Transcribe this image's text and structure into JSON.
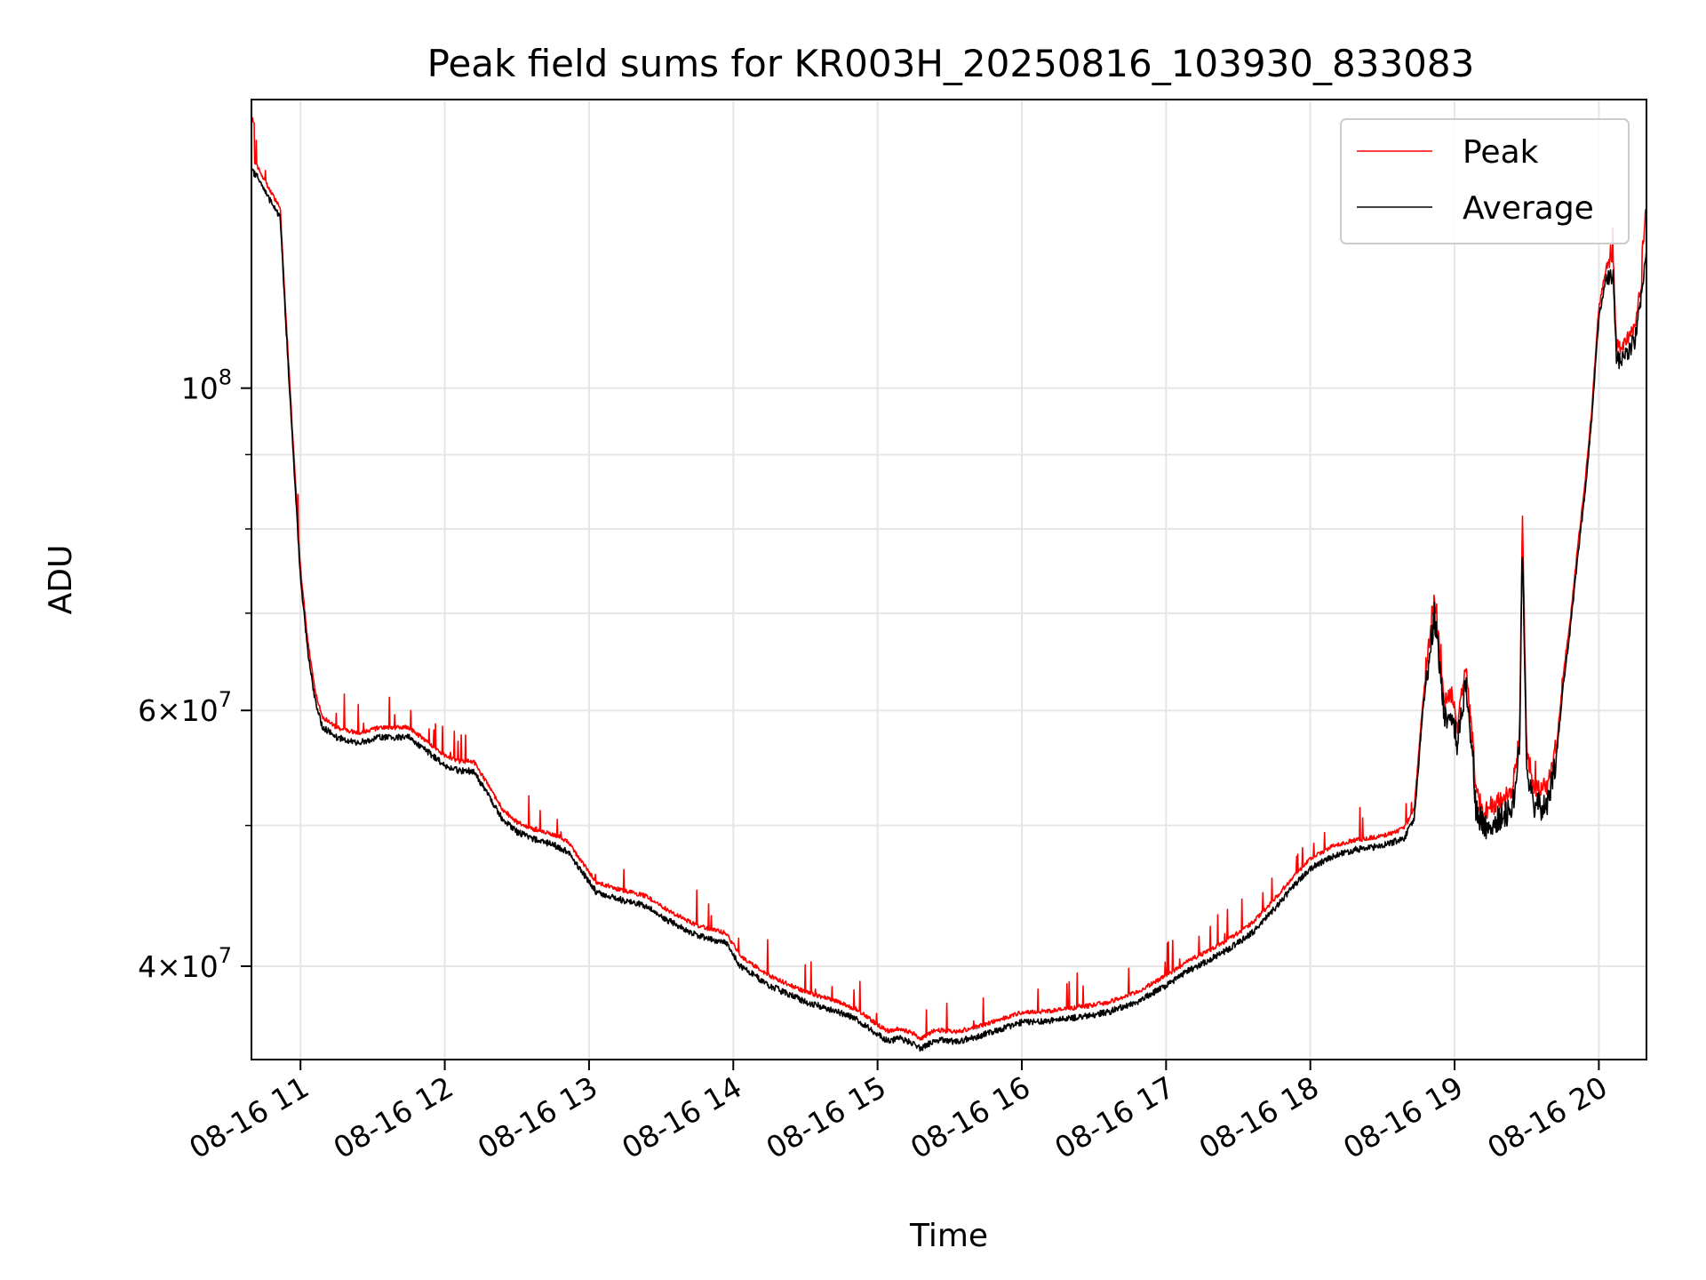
{
  "chart_data": {
    "type": "line",
    "title": "Peak field sums for KR003H_20250816_103930_833083",
    "xlabel": "Time",
    "ylabel": "ADU",
    "yscale": "log",
    "xlim_hours": [
      10.66,
      20.33
    ],
    "ylim": [
      34500000,
      158000000
    ],
    "x_ticks": [
      {
        "h": 11,
        "label": "08-16 11"
      },
      {
        "h": 12,
        "label": "08-16 12"
      },
      {
        "h": 13,
        "label": "08-16 13"
      },
      {
        "h": 14,
        "label": "08-16 14"
      },
      {
        "h": 15,
        "label": "08-16 15"
      },
      {
        "h": 16,
        "label": "08-16 16"
      },
      {
        "h": 17,
        "label": "08-16 17"
      },
      {
        "h": 18,
        "label": "08-16 18"
      },
      {
        "h": 19,
        "label": "08-16 19"
      },
      {
        "h": 20,
        "label": "08-16 20"
      }
    ],
    "y_major_ticks": [
      {
        "v": 40000000,
        "mantissa": "4",
        "exp": "7"
      },
      {
        "v": 60000000,
        "mantissa": "6",
        "exp": "7"
      },
      {
        "v": 100000000,
        "mantissa": "",
        "exp": "8"
      }
    ],
    "y_minor_ticks": [
      50000000,
      70000000,
      80000000,
      90000000
    ],
    "grid": true,
    "legend_position": "top-right",
    "series": [
      {
        "name": "Peak",
        "color": "#ff0000"
      },
      {
        "name": "Average",
        "color": "#000000"
      }
    ],
    "average_trend": {
      "x": [
        10.66,
        10.7,
        10.75,
        10.8,
        10.86,
        10.9,
        10.95,
        11.0,
        11.05,
        11.1,
        11.15,
        11.25,
        11.4,
        11.55,
        11.75,
        11.9,
        12.0,
        12.1,
        12.2,
        12.3,
        12.4,
        12.5,
        12.6,
        12.75,
        12.85,
        12.95,
        13.05,
        13.2,
        13.4,
        13.55,
        13.75,
        13.95,
        14.05,
        14.25,
        14.5,
        14.7,
        14.85,
        15.0,
        15.08,
        15.15,
        15.25,
        15.3,
        15.4,
        15.55,
        15.7,
        15.85,
        16.0,
        16.2,
        16.4,
        16.6,
        16.8,
        17.0,
        17.15,
        17.3,
        17.45,
        17.6,
        17.75,
        17.9,
        18.0,
        18.15,
        18.3,
        18.5,
        18.65,
        18.72,
        18.78,
        18.83,
        18.86,
        18.89,
        18.93,
        18.97,
        19.02,
        19.08,
        19.13,
        19.15,
        19.2,
        19.25,
        19.3,
        19.35,
        19.4,
        19.45,
        19.47,
        19.5,
        19.55,
        19.6,
        19.65,
        19.7,
        19.75,
        19.8,
        19.85,
        19.9,
        19.95,
        20.0,
        20.05,
        20.1,
        20.12,
        20.15,
        20.2,
        20.25,
        20.28,
        20.31,
        20.33
      ],
      "y": [
        141000000,
        140000000,
        137000000,
        134000000,
        131000000,
        110000000,
        90000000,
        74000000,
        66000000,
        61000000,
        58500000,
        57500000,
        57000000,
        57500000,
        57500000,
        56000000,
        55000000,
        54500000,
        54500000,
        52500000,
        50500000,
        49500000,
        49000000,
        48500000,
        48000000,
        46500000,
        45000000,
        44500000,
        44000000,
        43000000,
        42000000,
        41500000,
        40000000,
        38800000,
        37800000,
        37300000,
        36800000,
        35900000,
        35500000,
        35700000,
        35400000,
        35100000,
        35600000,
        35500000,
        35800000,
        36200000,
        36600000,
        36700000,
        36900000,
        37200000,
        37800000,
        38800000,
        39700000,
        40400000,
        41200000,
        42200000,
        43800000,
        45600000,
        46700000,
        47600000,
        48100000,
        48400000,
        49000000,
        50500000,
        60000000,
        66000000,
        70000000,
        65000000,
        59000000,
        60000000,
        57000000,
        63000000,
        55000000,
        51000000,
        50000000,
        49800000,
        50500000,
        50800000,
        51500000,
        56000000,
        79000000,
        55000000,
        51500000,
        51500000,
        52000000,
        55000000,
        62000000,
        68000000,
        76000000,
        84000000,
        95000000,
        112000000,
        119000000,
        120000000,
        105000000,
        104000000,
        106000000,
        108000000,
        113000000,
        118000000,
        125000000
      ]
    }
  }
}
